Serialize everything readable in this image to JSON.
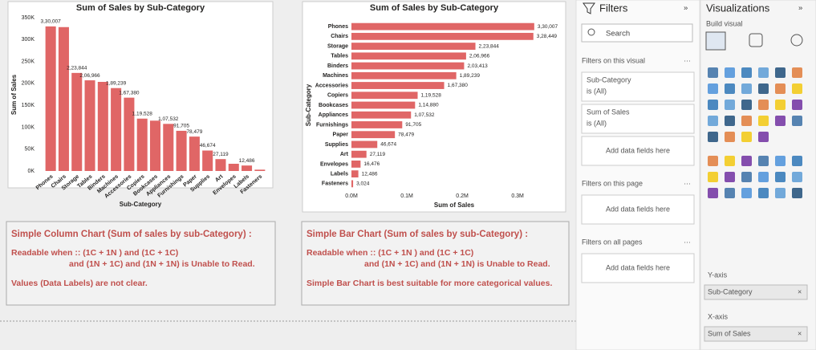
{
  "chart_data": [
    {
      "type": "bar",
      "title": "Sum of Sales by Sub-Category",
      "x_label": "Sub-Category",
      "y_label": "Sum of Sales",
      "categories": [
        "Phones",
        "Chairs",
        "Storage",
        "Tables",
        "Binders",
        "Machines",
        "Accessories",
        "Copiers",
        "Bookcases",
        "Appliances",
        "Furnishings",
        "Paper",
        "Supplies",
        "Art",
        "Envelopes",
        "Labels",
        "Fasteners"
      ],
      "values": [
        330007,
        328449,
        223844,
        206966,
        203413,
        189239,
        167380,
        119528,
        114880,
        107532,
        91705,
        78479,
        46674,
        27119,
        16476,
        12486,
        3024
      ],
      "value_labels": [
        "3,30,007",
        null,
        "2,23,844",
        "2,06,966",
        null,
        "1,89,239",
        "1,67,380",
        "1,19,528",
        null,
        "1,07,532",
        "91,705",
        "78,479",
        "46,674",
        "27,119",
        null,
        "12,486",
        null
      ],
      "color": "#e06666",
      "ylim": [
        0,
        350000
      ],
      "yticks": [
        {
          "value": 0,
          "label": "0K"
        },
        {
          "value": 50000,
          "label": "50K"
        },
        {
          "value": 100000,
          "label": "100K"
        },
        {
          "value": 150000,
          "label": "150K"
        },
        {
          "value": 200000,
          "label": "200K"
        },
        {
          "value": 250000,
          "label": "250K"
        },
        {
          "value": 300000,
          "label": "300K"
        },
        {
          "value": 350000,
          "label": "350K"
        }
      ]
    },
    {
      "type": "barh",
      "title": "Sum of Sales by Sub-Category",
      "x_label": "Sum of Sales",
      "y_label": "Sub-Category",
      "categories": [
        "Phones",
        "Chairs",
        "Storage",
        "Tables",
        "Binders",
        "Machines",
        "Accessories",
        "Copiers",
        "Bookcases",
        "Appliances",
        "Furnishings",
        "Paper",
        "Supplies",
        "Art",
        "Envelopes",
        "Labels",
        "Fasteners"
      ],
      "values": [
        330007,
        328449,
        223844,
        206966,
        203413,
        189239,
        167380,
        119528,
        114880,
        107532,
        91705,
        78479,
        46674,
        27119,
        16476,
        12486,
        3024
      ],
      "value_labels": [
        "3,30,007",
        "3,28,449",
        "2,23,844",
        "2,06,966",
        "2,03,413",
        "1,89,239",
        "1,67,380",
        "1,19,528",
        "1,14,880",
        "1,07,532",
        "91,705",
        "78,479",
        "46,674",
        "27,119",
        "16,476",
        "12,486",
        "3,024"
      ],
      "color": "#e06666",
      "xlim": [
        0,
        365000
      ],
      "xticks": [
        {
          "value": 0,
          "label": "0.0M"
        },
        {
          "value": 100000,
          "label": "0.1M"
        },
        {
          "value": 200000,
          "label": "0.2M"
        },
        {
          "value": 300000,
          "label": "0.3M"
        }
      ]
    }
  ],
  "notes": [
    {
      "heading": "Simple Column Chart (Sum of sales by sub-Category) :",
      "lines": [
        "Readable when :: (1C + 1N ) and (1C + 1C)",
        "and (1N + 1C) and (1N + 1N) is Unable to Read.",
        "Values (Data Labels) are not clear."
      ]
    },
    {
      "heading": "Simple Bar Chart (Sum of sales by sub-Category) :",
      "lines": [
        "Readable when :: (1C + 1N ) and (1C + 1C)",
        "and (1N + 1C) and (1N + 1N) is Unable to Read.",
        "Simple Bar Chart is best suitable for more categorical values."
      ]
    }
  ],
  "filters": {
    "title": "Filters",
    "search": "Search",
    "sections": [
      {
        "title": "Filters on this visual",
        "cards": [
          {
            "field": "Sub-Category",
            "state": "is (All)"
          },
          {
            "field": "Sum of Sales",
            "state": "is (All)"
          }
        ],
        "add": "Add data fields here"
      },
      {
        "title": "Filters on this page",
        "add": "Add data fields here"
      },
      {
        "title": "Filters on all pages",
        "add": "Add data fields here"
      }
    ]
  },
  "visualizations": {
    "title": "Visualizations",
    "build": "Build visual",
    "wells": [
      {
        "label": "Y-axis",
        "field": "Sub-Category"
      },
      {
        "label": "X-axis",
        "field": "Sum of Sales"
      }
    ]
  }
}
